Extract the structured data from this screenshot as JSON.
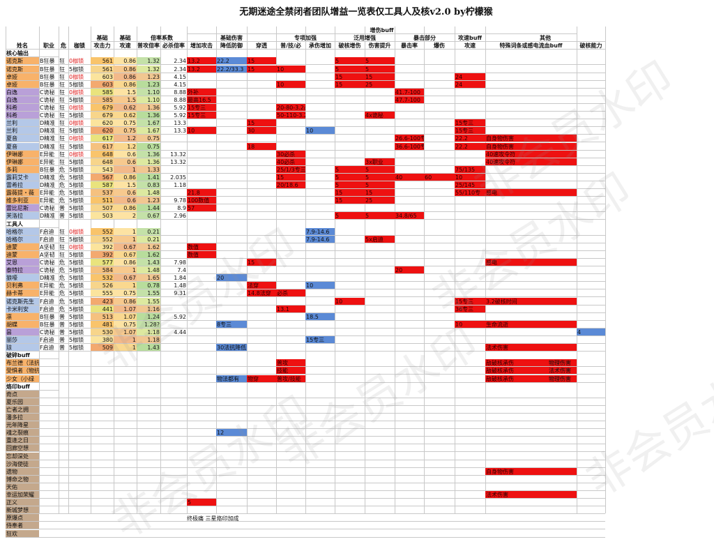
{
  "title": "无期迷途全禁闭者团队增益一览表仅工具人及核v2.0 by柠檬猴",
  "colors": {
    "red": "#ee1111",
    "blue": "#5b8ad6",
    "green": "#b8cf8a",
    "orange": "#f8b26a",
    "purple": "#b9a0d8",
    "lightblue": "#b4c8e8",
    "yellow": "#f5e05c",
    "tan": "#c4a88c",
    "red_text": "#e02020",
    "grid": "#c8c8c8"
  },
  "group_header": [
    "增伤buff"
  ],
  "header1": [
    "",
    "",
    "",
    "",
    "基础",
    "基础",
    "倍率系数",
    "",
    "基础伤害",
    "",
    "",
    "专项加强",
    "",
    "泛用增强",
    "",
    "暴击部分",
    "",
    "攻速buff",
    "其他",
    ""
  ],
  "header2": [
    "姓名",
    "职业",
    "危",
    "枷锁",
    "攻击力",
    "攻速",
    "普攻倍率",
    "必杀倍率",
    "增加攻击",
    "降低防御",
    "穿透",
    "普/技/必",
    "承伤增加",
    "破核增伤",
    "伤害提升",
    "暴击率",
    "爆伤",
    "攻速",
    "特殊词条或感电流血buff",
    "破核能力"
  ],
  "sections": {
    "core": "核心输出",
    "tools": "工具人",
    "break": "破碎buff",
    "imprint": "烙印buff"
  },
  "core_rows": [
    [
      "诺克斯",
      "B狂暴",
      "狂",
      "0枷锁",
      "561",
      "0.86",
      "1.32",
      "2.34",
      "13.2",
      "22.2",
      "15",
      "",
      "",
      "5",
      "5",
      "",
      "",
      "",
      "",
      ""
    ],
    [
      "诺克斯",
      "B狂暴",
      "狂",
      "5枷锁",
      "561",
      "0.86",
      "1.32",
      "2.34",
      "13.2",
      "22.2/33.3",
      "15",
      "10",
      "",
      "5",
      "5",
      "",
      "",
      "",
      "",
      ""
    ],
    [
      "卓娅",
      "B狂暴",
      "狂",
      "0枷锁",
      "603",
      "0.86",
      "1.23",
      "4.15",
      "",
      "",
      "",
      "",
      "",
      "15",
      "15",
      "",
      "",
      "24",
      "",
      ""
    ],
    [
      "卓娅",
      "B狂暴",
      "狂",
      "5枷锁",
      "603",
      "0.86",
      "1.23",
      "4.15",
      "",
      "",
      "",
      "10",
      "",
      "15",
      "25",
      "",
      "",
      "24",
      "",
      ""
    ],
    [
      "白逸",
      "C诡秘",
      "狂",
      "0枷锁",
      "585",
      "1.5",
      "1.10",
      "8.88",
      "外补",
      "",
      "",
      "",
      "",
      "",
      "",
      "41.7-100",
      "",
      "",
      "",
      ""
    ],
    [
      "白逸",
      "C诡秘",
      "狂",
      "5枷锁",
      "585",
      "1.5",
      "1.10",
      "8.88",
      "最高16.5",
      "",
      "",
      "",
      "",
      "",
      "",
      "47.7-100",
      "",
      "",
      "",
      ""
    ],
    [
      "科希",
      "C诡秘",
      "狂",
      "0枷锁",
      "679",
      "0.62",
      "1.36",
      "5.92",
      "15专三",
      "",
      "",
      "20-80-3.2必杀",
      "",
      "",
      "",
      "",
      "",
      "",
      "",
      ""
    ],
    [
      "科希",
      "C诡秘",
      "狂",
      "5枷锁",
      "679",
      "0.62",
      "1.36",
      "5.92",
      "15专三",
      "",
      "",
      "50-110-3.2必杀",
      "",
      "",
      "4x诡秘",
      "",
      "",
      "",
      "",
      ""
    ],
    [
      "兰利",
      "D精准",
      "狂",
      "0枷锁",
      "620",
      "0.75",
      "1.67",
      "13.3",
      "",
      "",
      "15",
      "",
      "",
      "",
      "",
      "",
      "",
      "15专三",
      "",
      ""
    ],
    [
      "兰利",
      "D精准",
      "狂",
      "5枷锁",
      "620",
      "0.75",
      "1.67",
      "13.3",
      "10",
      "",
      "30",
      "",
      "10",
      "",
      "",
      "",
      "",
      "15专三",
      "",
      ""
    ],
    [
      "夏音",
      "D精准",
      "狂",
      "0枷锁",
      "617",
      "1.2",
      "0.75",
      "",
      "",
      "",
      "",
      "",
      "",
      "",
      "",
      "26.6-100专",
      "",
      "22.2",
      "自身物伤害",
      ""
    ],
    [
      "夏音",
      "D精准",
      "狂",
      "5枷锁",
      "617",
      "1.2",
      "0.75",
      "",
      "",
      "",
      "18",
      "",
      "",
      "",
      "",
      "36.6-100专",
      "",
      "22.2",
      "自身物伤害",
      ""
    ],
    [
      "伊琳娜",
      "E异能",
      "狂",
      "0枷锁",
      "648",
      "0.6",
      "1.36",
      "13.32",
      "",
      "",
      "",
      "30必杀",
      "",
      "",
      "",
      "",
      "",
      "",
      "40速攻令符",
      ""
    ],
    [
      "伊琳娜",
      "E异能",
      "狂",
      "5枷锁",
      "648",
      "0.6",
      "1.36",
      "13.32",
      "",
      "",
      "",
      "40必杀",
      "",
      "",
      "3x职业",
      "",
      "",
      "",
      "40速攻令符",
      ""
    ],
    [
      "多莉",
      "B狂暴",
      "危",
      "5枷锁",
      "543",
      "1",
      "1.33",
      "",
      "",
      "",
      "",
      "25/1/3专三",
      "",
      "5",
      "5",
      "",
      "",
      "75/135",
      "",
      ""
    ],
    [
      "露莉艾卡",
      "D精准",
      "危",
      "5枷锁",
      "567",
      "0.86",
      "1.41",
      "2.035",
      "",
      "",
      "",
      "15",
      "",
      "5",
      "5",
      "40",
      "60",
      "10",
      "",
      ""
    ],
    [
      "雷希拉",
      "D精准",
      "危",
      "5枷锁",
      "587",
      "1.5",
      "0.83",
      "1.18",
      "",
      "",
      "",
      "20/18.6",
      "",
      "5",
      "5",
      "",
      "",
      "25/145",
      "",
      ""
    ],
    [
      "露薇提・薇",
      "E异能",
      "危",
      "5枷锁",
      "537",
      "0.6",
      "1.48",
      "",
      "21.8",
      "",
      "",
      "",
      "",
      "15",
      "15",
      "",
      "",
      "55/110专",
      "感电",
      ""
    ],
    [
      "维多利亚",
      "E异能",
      "危",
      "5枷锁",
      "511",
      "0.6",
      "1.23",
      "9.78",
      "100数值",
      "",
      "",
      "",
      "",
      "15",
      "25",
      "",
      "",
      "",
      "",
      ""
    ],
    [
      "雷比尼斯",
      "C诡秘",
      "普",
      "5枷锁",
      "507",
      "0.86",
      "1.44",
      "8.9",
      "57",
      "",
      "",
      "",
      "",
      "",
      "",
      "",
      "",
      "",
      "",
      ""
    ],
    [
      "芙洛拉",
      "D精准",
      "普",
      "5枷锁",
      "503",
      "2",
      "0.67",
      "2.96",
      "",
      "",
      "",
      "",
      "",
      "5",
      "5",
      "34.8/65",
      "",
      "",
      "",
      ""
    ]
  ],
  "tool_rows": [
    [
      "哈格尔",
      "F启迪",
      "狂",
      "0枷锁",
      "552",
      "1",
      "0.21",
      "",
      "",
      "",
      "",
      "",
      "7.9-14.6",
      "",
      "",
      "",
      "",
      "",
      "",
      ""
    ],
    [
      "哈格尔",
      "F启迪",
      "狂",
      "5枷锁",
      "552",
      "1",
      "0.21",
      "",
      "",
      "",
      "",
      "",
      "7.9-14.6",
      "",
      "5x启迪",
      "",
      "",
      "",
      "",
      ""
    ],
    [
      "迪蒙",
      "A坚韧",
      "狂",
      "0枷锁",
      "392",
      "0.67",
      "1.62",
      "",
      "数值",
      "",
      "",
      "",
      "",
      "",
      "",
      "",
      "",
      "",
      "",
      ""
    ],
    [
      "迪蒙",
      "A坚韧",
      "狂",
      "5枷锁",
      "392",
      "0.67",
      "1.62",
      "",
      "数值",
      "",
      "",
      "",
      "",
      "",
      "",
      "",
      "",
      "",
      "",
      ""
    ],
    [
      "艾恩",
      "C诡秘",
      "危",
      "5枷锁",
      "577",
      "0.86",
      "1.43",
      "7.98",
      "",
      "",
      "15",
      "",
      "",
      "",
      "",
      "",
      "",
      "",
      "感电",
      ""
    ],
    [
      "泰特拉",
      "C诡秘",
      "危",
      "5枷锁",
      "584",
      "1",
      "1.48",
      "7.4",
      "",
      "",
      "",
      "",
      "",
      "",
      "",
      "20",
      "",
      "",
      "",
      ""
    ],
    [
      "狼嚎",
      "D精准",
      "危",
      "5枷锁",
      "532",
      "0.67",
      "1.65",
      "1.84",
      "",
      "20",
      "",
      "",
      "",
      "",
      "",
      "",
      "",
      "",
      "",
      ""
    ],
    [
      "贝利弗",
      "E异能",
      "危",
      "5枷锁",
      "526",
      "1",
      "0.78",
      "1.48",
      "",
      "",
      "法穿",
      "",
      "10",
      "",
      "",
      "",
      "",
      "",
      "",
      ""
    ],
    [
      "赫卡蒂",
      "E异能",
      "危",
      "5枷锁",
      "555",
      "0.75",
      "1.55",
      "9.31",
      "",
      "",
      "14.8法穿",
      "必杀",
      "",
      "",
      "",
      "",
      "",
      "",
      "",
      ""
    ],
    [
      "诺克斯先生",
      "F启迪",
      "危",
      "5枷锁",
      "423",
      "0.86",
      "1.55",
      "",
      "",
      "",
      "",
      "",
      "",
      "10",
      "",
      "",
      "",
      "15专三",
      "3.2破核时间",
      ""
    ],
    [
      "卡米利安",
      "F启迪",
      "危",
      "5枷锁",
      "441",
      "1.07",
      "1.16",
      "",
      "",
      "",
      "",
      "13.1",
      "",
      "",
      "",
      "",
      "",
      "36专三",
      "",
      ""
    ],
    [
      "凛",
      "B狂暴",
      "普",
      "5枷锁",
      "513",
      "1.07",
      "1.24",
      "5.92",
      "",
      "",
      "",
      "",
      "18.5",
      "",
      "",
      "",
      "",
      "",
      "",
      ""
    ],
    [
      "胡蝶",
      "B狂暴",
      "普",
      "5枷锁",
      "481",
      "0.75",
      "1.28?",
      "",
      "",
      "8专三",
      "",
      "",
      "",
      "",
      "",
      "",
      "",
      "10",
      "生命流逝",
      ""
    ],
    [
      "昙",
      "C诡秘",
      "普",
      "5枷锁",
      "530",
      "1.07",
      "1.18",
      "4.44",
      "",
      "",
      "",
      "",
      "",
      "",
      "",
      "",
      "",
      "",
      "",
      "4"
    ],
    [
      "丽莎",
      "F启迪",
      "普",
      "5枷锁",
      "380",
      "1",
      "1.18",
      "",
      "",
      "",
      "",
      "",
      "15专三",
      "",
      "",
      "",
      "",
      "",
      "",
      ""
    ],
    [
      "琼",
      "F启迪",
      "普",
      "5枷锁",
      "509",
      "1",
      "1.43",
      "",
      "",
      "30法抗降低",
      "",
      "",
      "",
      "",
      "",
      "",
      "",
      "",
      "法术伤害",
      ""
    ]
  ],
  "break_rows": [
    [
      "布兰德（法抗",
      "",
      "",
      "",
      "",
      "",
      "",
      "",
      "",
      "",
      "",
      "普攻",
      "",
      "",
      "",
      "",
      "",
      "",
      "敌破核承伤",
      ""
    ],
    [
      "受惧者（物抗",
      "",
      "",
      "",
      "",
      "",
      "",
      "",
      "",
      "",
      "",
      "技能",
      "",
      "",
      "",
      "",
      "",
      "",
      "敌破核承伤",
      ""
    ],
    [
      "少女（小绿",
      "",
      "",
      "",
      "",
      "",
      "",
      "",
      "",
      "物法都有",
      "物穿",
      "普攻/技能",
      "",
      "",
      "",
      "",
      "",
      "",
      "敌破核承伤",
      ""
    ]
  ],
  "break_extra": [
    "物理伤害",
    "法术伤害",
    "物理伤害"
  ],
  "imprint_rows": [
    [
      "奇点",
      "",
      "",
      "",
      "",
      "",
      "",
      "",
      "",
      "",
      "",
      "",
      "",
      "",
      "",
      "",
      "",
      "",
      "",
      ""
    ],
    [
      "夏乐园",
      "",
      "",
      "",
      "",
      "",
      "",
      "",
      "",
      "",
      "",
      "",
      "",
      "",
      "",
      "",
      "",
      "",
      "",
      ""
    ],
    [
      "亡者之拥",
      "",
      "",
      "",
      "",
      "",
      "",
      "",
      "",
      "",
      "",
      "",
      "",
      "",
      "",
      "",
      "",
      "",
      "",
      ""
    ],
    [
      "潘多拉",
      "",
      "",
      "",
      "",
      "",
      "",
      "",
      "",
      "",
      "",
      "",
      "",
      "",
      "",
      "",
      "",
      "",
      "",
      ""
    ],
    [
      "元年降星",
      "",
      "",
      "",
      "",
      "",
      "",
      "",
      "",
      "",
      "",
      "",
      "",
      "",
      "",
      "",
      "",
      "",
      "",
      ""
    ],
    [
      "魂之裂痕",
      "",
      "",
      "",
      "",
      "",
      "",
      "",
      "",
      "12",
      "",
      "",
      "",
      "",
      "",
      "",
      "",
      "",
      "",
      ""
    ],
    [
      "重逢之日",
      "",
      "",
      "",
      "",
      "",
      "",
      "",
      "",
      "",
      "",
      "",
      "",
      "",
      "",
      "",
      "",
      "",
      "",
      ""
    ],
    [
      "回廊空想",
      "",
      "",
      "",
      "",
      "",
      "",
      "",
      "",
      "",
      "",
      "",
      "",
      "",
      "",
      "",
      "",
      "",
      "",
      ""
    ],
    [
      "忘却深处",
      "",
      "",
      "",
      "",
      "",
      "",
      "",
      "",
      "",
      "",
      "",
      "",
      "",
      "",
      "",
      "",
      "",
      "",
      ""
    ],
    [
      "沙海使徒",
      "",
      "",
      "",
      "",
      "",
      "",
      "",
      "",
      "",
      "",
      "",
      "",
      "",
      "",
      "",
      "",
      "",
      "",
      ""
    ],
    [
      "遗物",
      "",
      "",
      "",
      "",
      "",
      "",
      "",
      "",
      "",
      "",
      "",
      "",
      "",
      "",
      "",
      "",
      "",
      "自身物伤害",
      ""
    ],
    [
      "博命之物",
      "",
      "",
      "",
      "",
      "",
      "",
      "",
      "",
      "",
      "",
      "",
      "",
      "",
      "",
      "",
      "",
      "",
      "",
      ""
    ],
    [
      "天佑",
      "",
      "",
      "",
      "",
      "",
      "",
      "",
      "",
      "",
      "",
      "",
      "",
      "",
      "",
      "",
      "",
      "",
      "",
      ""
    ],
    [
      "幸运加荣耀",
      "",
      "",
      "",
      "",
      "",
      "",
      "",
      "",
      "",
      "",
      "",
      "",
      "",
      "",
      "",
      "",
      "",
      "法术伤害",
      ""
    ],
    [
      "正义",
      "",
      "",
      "",
      "",
      "",
      "",
      "",
      "5",
      "",
      "",
      "",
      "",
      "",
      "",
      "",
      "",
      "",
      "",
      ""
    ],
    [
      "新城梦想",
      "",
      "",
      "",
      "",
      "",
      "",
      "",
      "",
      "",
      "",
      "",
      "",
      "",
      "",
      "",
      "",
      "",
      "",
      ""
    ],
    [
      "原爆点",
      "",
      "",
      "",
      "",
      "",
      "",
      "",
      "",
      "",
      "",
      "",
      "",
      "",
      "",
      "",
      "",
      "",
      "",
      ""
    ],
    [
      "侍奉者",
      "",
      "",
      "",
      "",
      "",
      "",
      "",
      "",
      "",
      "",
      "",
      "",
      "",
      "",
      "",
      "",
      "",
      "",
      ""
    ],
    [
      "狂欢",
      "",
      "",
      "",
      "",
      "",
      "",
      "",
      "",
      "",
      "",
      "",
      "",
      "",
      "",
      "",
      "",
      "",
      "",
      ""
    ]
  ],
  "bottom_note": "终极痛 三星烙印加成",
  "watermark": "非会员水印"
}
